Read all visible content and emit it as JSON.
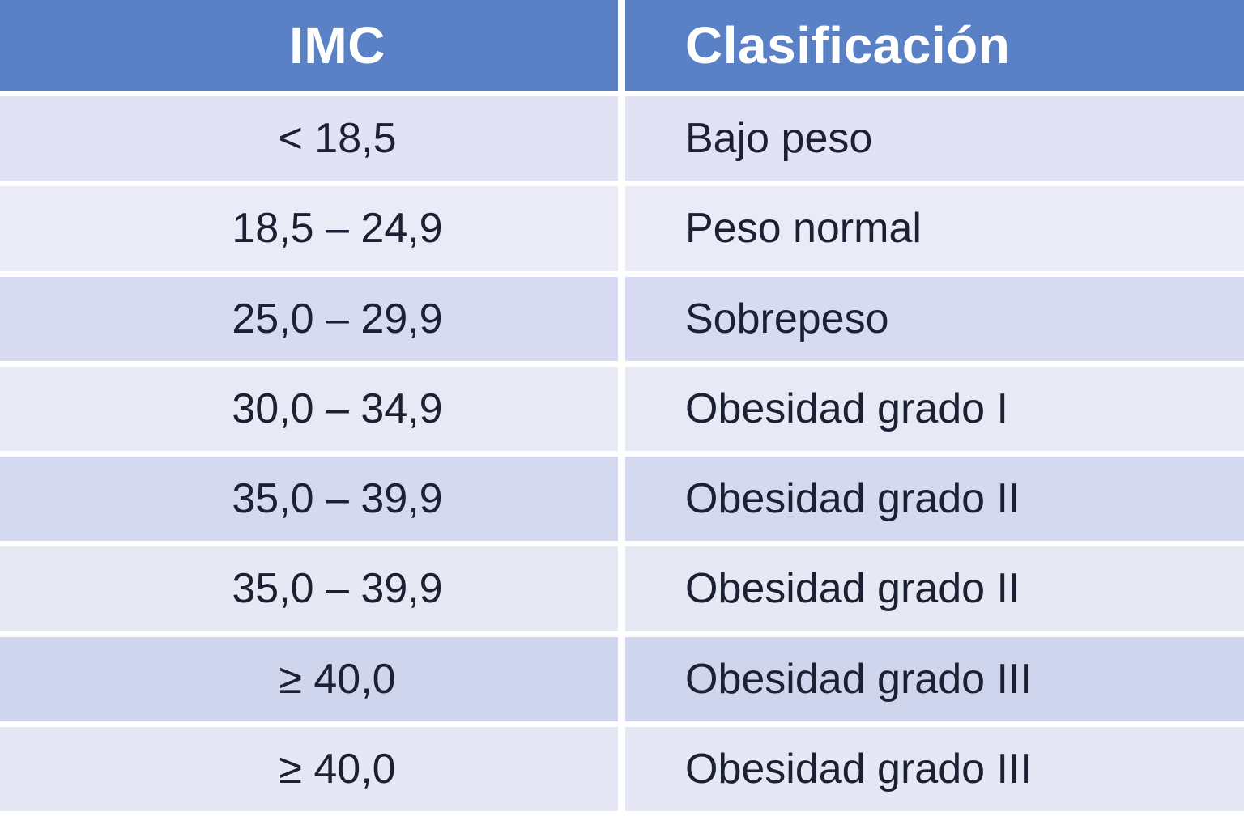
{
  "table": {
    "columns": [
      {
        "label": "IMC"
      },
      {
        "label": "Clasificación"
      }
    ],
    "rows": [
      {
        "imc": "< 18,5",
        "classification": "Bajo peso",
        "bg": "#e1e3f4"
      },
      {
        "imc": "18,5 – 24,9",
        "classification": "Peso normal",
        "bg": "#eaebf7"
      },
      {
        "imc": "25,0 – 29,9",
        "classification": "Sobrepeso",
        "bg": "#d8daf2"
      },
      {
        "imc": "30,0 – 34,9",
        "classification": "Obesidad grado I",
        "bg": "#e7e9f5"
      },
      {
        "imc": "35,0 – 39,9",
        "classification": "Obesidad grado II",
        "bg": "#d5d9ef"
      },
      {
        "imc": "35,0 – 39,9",
        "classification": "Obesidad grado II",
        "bg": "#e6e8f4"
      },
      {
        "imc": "≥ 40,0",
        "classification": "Obesidad grado III",
        "bg": "#cfd5ec"
      },
      {
        "imc": "≥ 40,0",
        "classification": "Obesidad grado III",
        "bg": "#e5e7f4"
      }
    ],
    "colors": {
      "header_bg": "#5a80c6",
      "header_text": "#ffffff",
      "body_text": "#1c2033",
      "divider": "#ffffff"
    }
  }
}
